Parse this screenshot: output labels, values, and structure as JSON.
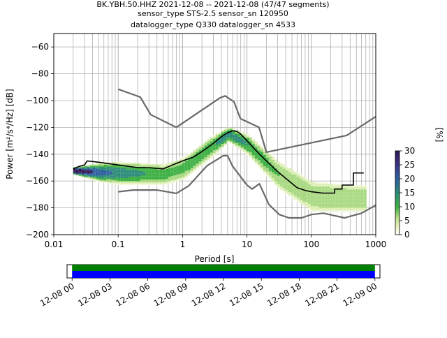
{
  "chart_data": [
    {
      "type": "heatmap",
      "subtype": "probabilistic-power-spectral-density",
      "title_lines": [
        "BK.YBH.50.HHZ   2021-12-08 -- 2021-12-08  (47/47 segments)",
        "sensor_type STS-2.5 sensor_sn 120950",
        "datalogger_type Q330 datalogger_sn 4533"
      ],
      "xlabel": "Period [s]",
      "ylabel": "Power [m²/s⁴/Hz] [dB]",
      "x_scale": "log",
      "xlim": [
        0.01,
        1000
      ],
      "ylim": [
        -200,
        -50
      ],
      "xticks": [
        {
          "value": 0.01,
          "label": "0.01"
        },
        {
          "value": 0.1,
          "label": "0.1"
        },
        {
          "value": 1,
          "label": "1"
        },
        {
          "value": 10,
          "label": "10"
        },
        {
          "value": 100,
          "label": "100"
        },
        {
          "value": 1000,
          "label": "1000"
        }
      ],
      "yticks": [
        {
          "value": -60,
          "label": "−60"
        },
        {
          "value": -80,
          "label": "−80"
        },
        {
          "value": -100,
          "label": "−100"
        },
        {
          "value": -120,
          "label": "−120"
        },
        {
          "value": -140,
          "label": "−140"
        },
        {
          "value": -160,
          "label": "−160"
        },
        {
          "value": -180,
          "label": "−180"
        },
        {
          "value": -200,
          "label": "−200"
        }
      ],
      "grid": true,
      "colors": {
        "density_low": "#f0f7d4",
        "density_mid": "#3cb043",
        "density_high": "#2e1552",
        "mean": "#000000",
        "noise_models": "#696969"
      },
      "series": [
        {
          "role": "mean",
          "type": "line",
          "points": [
            [
              0.02,
              -151
            ],
            [
              0.025,
              -149
            ],
            [
              0.03,
              -148
            ],
            [
              0.033,
              -145
            ],
            [
              0.05,
              -146
            ],
            [
              0.1,
              -148
            ],
            [
              0.2,
              -150
            ],
            [
              0.3,
              -150
            ],
            [
              0.5,
              -151
            ],
            [
              0.7,
              -148
            ],
            [
              1,
              -145
            ],
            [
              1.5,
              -142
            ],
            [
              2,
              -138
            ],
            [
              3,
              -132
            ],
            [
              4,
              -127
            ],
            [
              5,
              -124
            ],
            [
              6,
              -122.5
            ],
            [
              7,
              -123
            ],
            [
              8,
              -125
            ],
            [
              10,
              -130
            ],
            [
              15,
              -139
            ],
            [
              20,
              -145
            ],
            [
              30,
              -153
            ],
            [
              40,
              -158
            ],
            [
              60,
              -165
            ],
            [
              80,
              -167
            ],
            [
              100,
              -168
            ],
            [
              150,
              -169
            ],
            [
              200,
              -169
            ],
            [
              230,
              -169
            ],
            [
              230,
              -166
            ],
            [
              300,
              -166
            ],
            [
              300,
              -163
            ],
            [
              450,
              -163
            ],
            [
              450,
              -154
            ],
            [
              650,
              -154
            ]
          ]
        },
        {
          "role": "high-noise-model",
          "type": "line",
          "points": [
            [
              0.1,
              -91.5
            ],
            [
              0.22,
              -97.4
            ],
            [
              0.32,
              -110.5
            ],
            [
              0.8,
              -120
            ],
            [
              3.8,
              -98
            ],
            [
              4.6,
              -96.5
            ],
            [
              6.3,
              -101
            ],
            [
              7.9,
              -113.5
            ],
            [
              15.4,
              -120
            ],
            [
              20,
              -138.5
            ],
            [
              354,
              -126
            ],
            [
              1000,
              -112
            ]
          ]
        },
        {
          "role": "low-noise-model",
          "type": "line",
          "points": [
            [
              0.1,
              -168
            ],
            [
              0.17,
              -166.7
            ],
            [
              0.4,
              -166.7
            ],
            [
              0.8,
              -169.2
            ],
            [
              1.24,
              -163.7
            ],
            [
              2.4,
              -148.6
            ],
            [
              4.3,
              -141.1
            ],
            [
              5,
              -141.1
            ],
            [
              6,
              -149
            ],
            [
              10,
              -163
            ],
            [
              12,
              -166
            ],
            [
              15.6,
              -162.1
            ],
            [
              21.9,
              -177.5
            ],
            [
              31.6,
              -185
            ],
            [
              45,
              -187.5
            ],
            [
              70,
              -187.5
            ],
            [
              101,
              -185
            ],
            [
              154,
              -184
            ],
            [
              328,
              -187.5
            ],
            [
              600,
              -184
            ],
            [
              1000,
              -178
            ]
          ]
        }
      ],
      "density_estimates": [
        {
          "period": 0.02,
          "db_range": [
            -155,
            -149
          ],
          "peak_percent": 25
        },
        {
          "period": 0.05,
          "db_range": [
            -160,
            -146
          ],
          "peak_percent": 18
        },
        {
          "period": 0.1,
          "db_range": [
            -162,
            -145
          ],
          "peak_percent": 15
        },
        {
          "period": 0.5,
          "db_range": [
            -162,
            -147
          ],
          "peak_percent": 10
        },
        {
          "period": 1,
          "db_range": [
            -158,
            -142
          ],
          "peak_percent": 10
        },
        {
          "period": 3,
          "db_range": [
            -140,
            -125
          ],
          "peak_percent": 12
        },
        {
          "period": 5,
          "db_range": [
            -130,
            -119
          ],
          "peak_percent": 15
        },
        {
          "period": 10,
          "db_range": [
            -140,
            -125
          ],
          "peak_percent": 12
        },
        {
          "period": 30,
          "db_range": [
            -165,
            -145
          ],
          "peak_percent": 8
        },
        {
          "period": 100,
          "db_range": [
            -182,
            -160
          ],
          "peak_percent": 8
        },
        {
          "period": 500,
          "db_range": [
            -182,
            -163
          ],
          "peak_percent": 8
        }
      ]
    },
    {
      "type": "colorbar",
      "label": "[%]",
      "range": [
        0,
        30
      ],
      "ticks": [
        {
          "value": 0,
          "label": "0"
        },
        {
          "value": 5,
          "label": "5"
        },
        {
          "value": 10,
          "label": "10"
        },
        {
          "value": 15,
          "label": "15"
        },
        {
          "value": 20,
          "label": "20"
        },
        {
          "value": 25,
          "label": "25"
        },
        {
          "value": 30,
          "label": "30"
        }
      ]
    },
    {
      "type": "timeline",
      "xlim_hours": [
        -0.4,
        24.4
      ],
      "coverage_hours": [
        0,
        24
      ],
      "colors": {
        "upper": "#008000",
        "lower": "#0000ff"
      },
      "ticks": [
        {
          "hour": 0,
          "label": "12-08 00"
        },
        {
          "hour": 3,
          "label": "12-08 03"
        },
        {
          "hour": 6,
          "label": "12-08 06"
        },
        {
          "hour": 9,
          "label": "12-08 09"
        },
        {
          "hour": 12,
          "label": "12-08 12"
        },
        {
          "hour": 15,
          "label": "12-08 15"
        },
        {
          "hour": 18,
          "label": "12-08 18"
        },
        {
          "hour": 21,
          "label": "12-08 21"
        },
        {
          "hour": 24,
          "label": "12-09 00"
        }
      ]
    }
  ]
}
